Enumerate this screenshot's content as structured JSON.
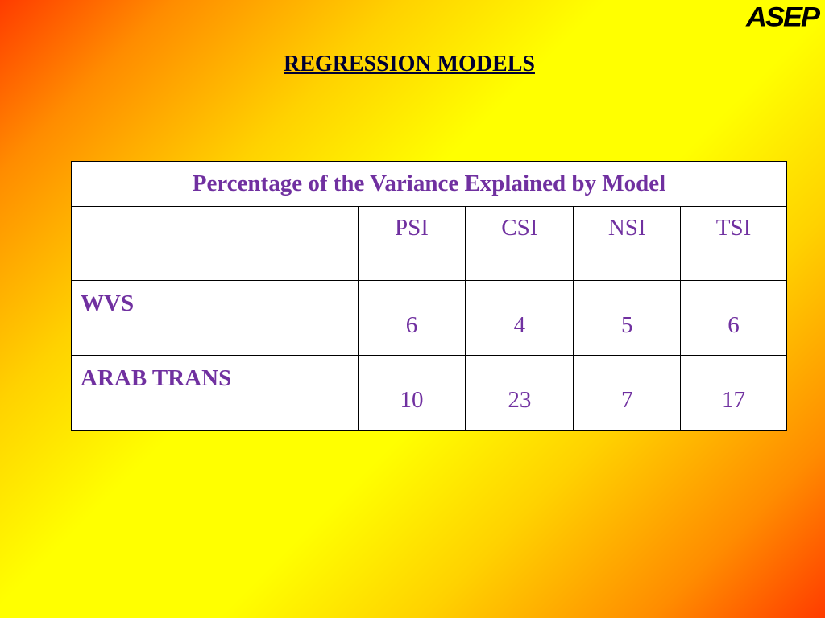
{
  "logo": "ASEP",
  "header": {
    "title": "REGRESSION MODELS"
  },
  "table": {
    "caption": "Percentage of the Variance Explained by Model",
    "columns": [
      "PSI",
      "CSI",
      "NSI",
      "TSI"
    ],
    "rows": [
      {
        "label": "WVS",
        "values": [
          6,
          4,
          5,
          6
        ]
      },
      {
        "label": "ARAB TRANS",
        "values": [
          10,
          23,
          7,
          17
        ]
      }
    ]
  }
}
